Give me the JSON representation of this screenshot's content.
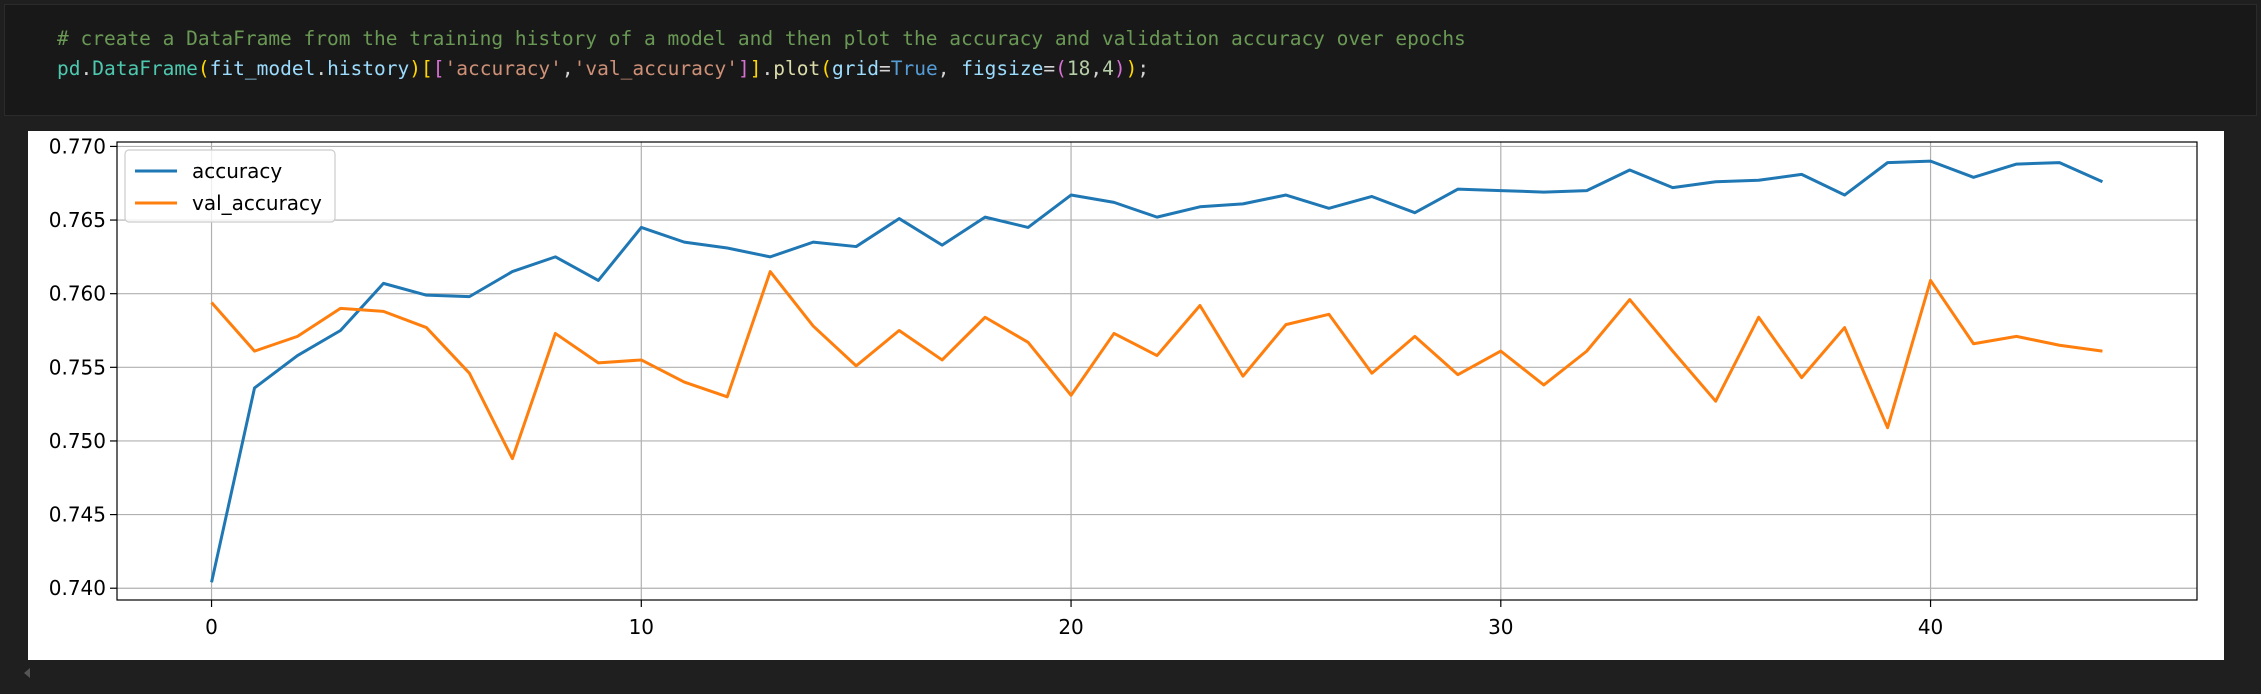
{
  "code_cell": {
    "comment": "# create a DataFrame from the training history of a model and then plot the accuracy and validation accuracy over epochs",
    "tokens": [
      {
        "t": "pd",
        "c": "var"
      },
      {
        "t": ".",
        "c": "pun"
      },
      {
        "t": "DataFrame",
        "c": "var"
      },
      {
        "t": "(",
        "c": "br1"
      },
      {
        "t": "fit_model",
        "c": "ident"
      },
      {
        "t": ".",
        "c": "pun"
      },
      {
        "t": "history",
        "c": "ident"
      },
      {
        "t": ")",
        "c": "br1"
      },
      {
        "t": "[",
        "c": "br1"
      },
      {
        "t": "[",
        "c": "br2"
      },
      {
        "t": "'accuracy'",
        "c": "str"
      },
      {
        "t": ",",
        "c": "pun"
      },
      {
        "t": "'val_accuracy'",
        "c": "str"
      },
      {
        "t": "]",
        "c": "br2"
      },
      {
        "t": "]",
        "c": "br1"
      },
      {
        "t": ".",
        "c": "pun"
      },
      {
        "t": "plot",
        "c": "fn"
      },
      {
        "t": "(",
        "c": "br1"
      },
      {
        "t": "grid",
        "c": "ident"
      },
      {
        "t": "=",
        "c": "pun"
      },
      {
        "t": "True",
        "c": "kw"
      },
      {
        "t": ", ",
        "c": "pun"
      },
      {
        "t": "figsize",
        "c": "ident"
      },
      {
        "t": "=",
        "c": "pun"
      },
      {
        "t": "(",
        "c": "br2"
      },
      {
        "t": "18",
        "c": "num"
      },
      {
        "t": ",",
        "c": "pun"
      },
      {
        "t": "4",
        "c": "num"
      },
      {
        "t": ")",
        "c": "br2"
      },
      {
        "t": ")",
        "c": "br1"
      },
      {
        "t": ";",
        "c": "pun"
      }
    ]
  },
  "chart_data": {
    "type": "line",
    "title": "",
    "xlabel": "",
    "ylabel": "",
    "xlim": [
      -2.2,
      46.2
    ],
    "ylim": [
      0.7392,
      0.7703
    ],
    "x_ticks": [
      0,
      10,
      20,
      30,
      40
    ],
    "y_ticks": [
      0.74,
      0.745,
      0.75,
      0.755,
      0.76,
      0.765,
      0.77
    ],
    "y_tick_labels": [
      "0.740",
      "0.745",
      "0.750",
      "0.755",
      "0.760",
      "0.765",
      "0.770"
    ],
    "grid": true,
    "legend_position": "upper-left",
    "x": [
      0,
      1,
      2,
      3,
      4,
      5,
      6,
      7,
      8,
      9,
      10,
      11,
      12,
      13,
      14,
      15,
      16,
      17,
      18,
      19,
      20,
      21,
      22,
      23,
      24,
      25,
      26,
      27,
      28,
      29,
      30,
      31,
      32,
      33,
      34,
      35,
      36,
      37,
      38,
      39,
      40,
      41,
      42,
      43,
      44
    ],
    "series": [
      {
        "name": "accuracy",
        "color": "#1f77b4",
        "values": [
          0.7404,
          0.7536,
          0.7558,
          0.7575,
          0.7607,
          0.7599,
          0.7598,
          0.7615,
          0.7625,
          0.7609,
          0.7645,
          0.7635,
          0.7631,
          0.7625,
          0.7635,
          0.7632,
          0.7651,
          0.7633,
          0.7652,
          0.7645,
          0.7667,
          0.7662,
          0.7652,
          0.7659,
          0.7661,
          0.7667,
          0.7658,
          0.7666,
          0.7655,
          0.7671,
          0.767,
          0.7669,
          0.767,
          0.7684,
          0.7672,
          0.7676,
          0.7677,
          0.7681,
          0.7667,
          0.7689,
          0.769,
          0.7679,
          0.7688,
          0.7689,
          0.7676
        ]
      },
      {
        "name": "val_accuracy",
        "color": "#ff7f0e",
        "values": [
          0.7594,
          0.7561,
          0.7571,
          0.759,
          0.7588,
          0.7577,
          0.7546,
          0.7488,
          0.7573,
          0.7553,
          0.7555,
          0.754,
          0.753,
          0.7615,
          0.7578,
          0.7551,
          0.7575,
          0.7555,
          0.7584,
          0.7567,
          0.7531,
          0.7573,
          0.7558,
          0.7592,
          0.7544,
          0.7579,
          0.7586,
          0.7546,
          0.7571,
          0.7545,
          0.7561,
          0.7538,
          0.7561,
          0.7596,
          0.7561,
          0.7527,
          0.7584,
          0.7543,
          0.7577,
          0.7509,
          0.7609,
          0.7566,
          0.7571,
          0.7565,
          0.7561
        ]
      }
    ]
  }
}
